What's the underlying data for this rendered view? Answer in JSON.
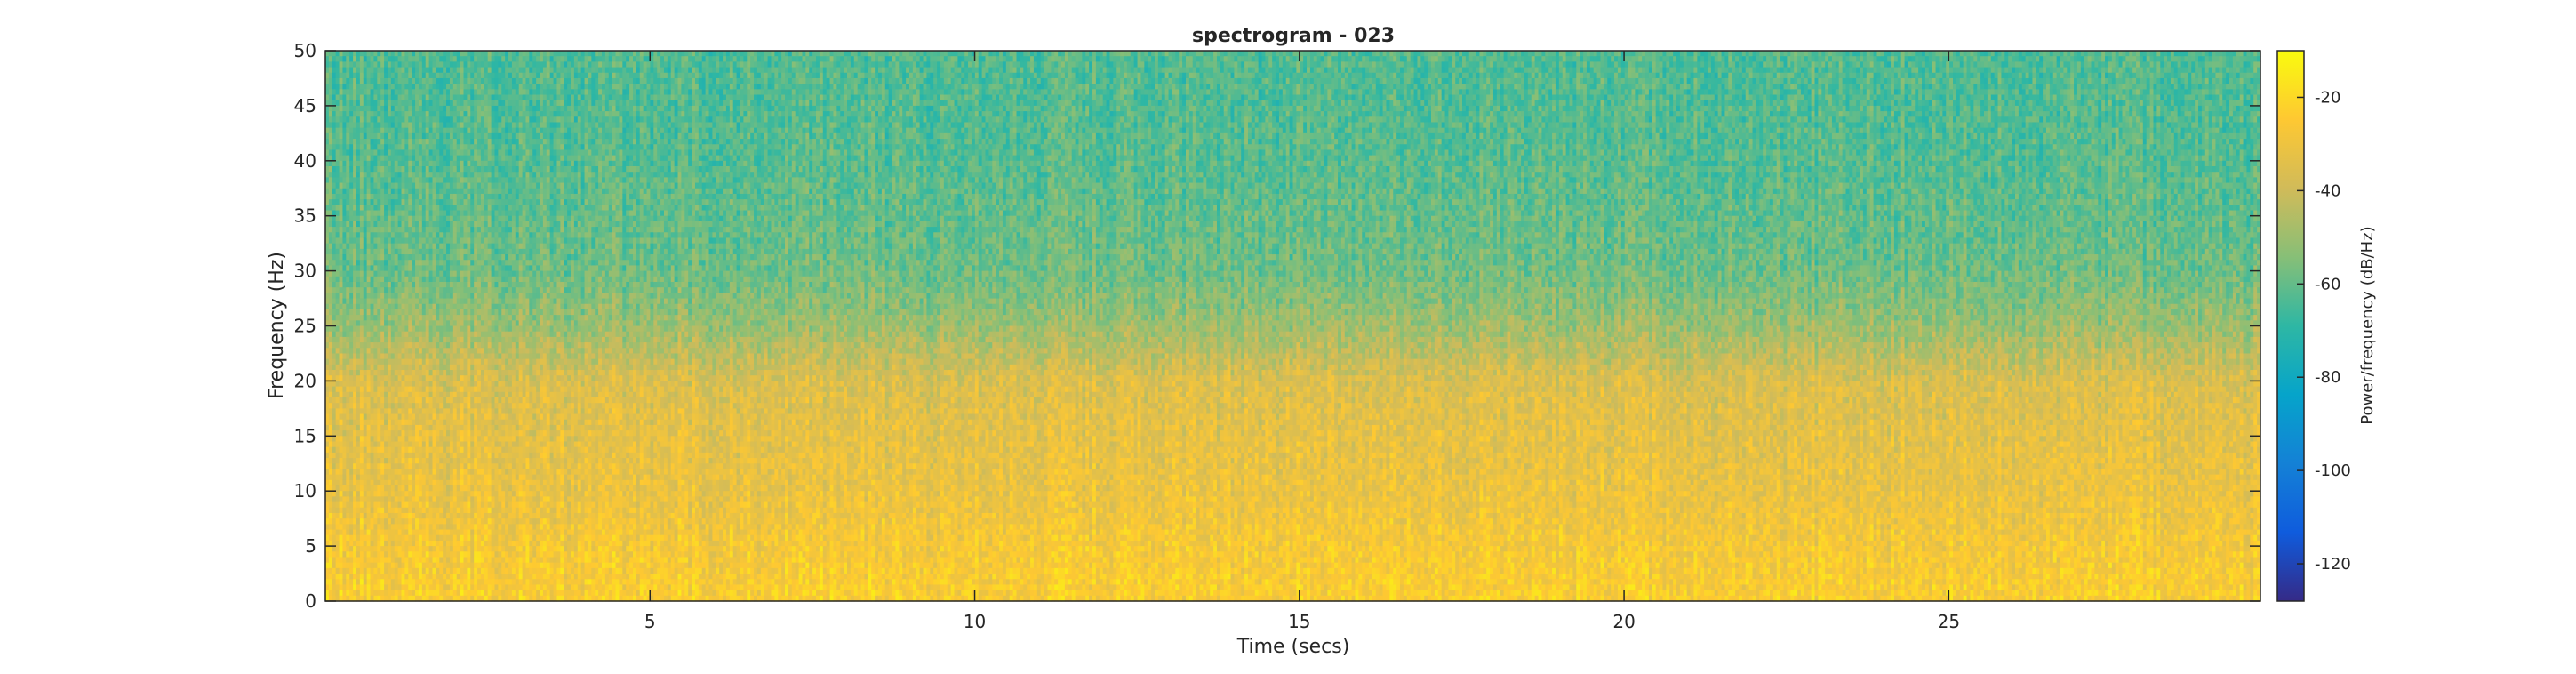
{
  "chart_data": {
    "type": "heatmap",
    "title": "spectrogram - 023",
    "xlabel": "Time (secs)",
    "ylabel": "Frequency (Hz)",
    "xlim": [
      0,
      29.8
    ],
    "ylim": [
      0,
      50
    ],
    "x_ticks": [
      5,
      10,
      15,
      20,
      25
    ],
    "y_ticks": [
      0,
      5,
      10,
      15,
      20,
      25,
      30,
      35,
      40,
      45,
      50
    ],
    "colorbar": {
      "label": "Power/frequency (dB/Hz)",
      "range": [
        -128,
        -10
      ],
      "ticks": [
        -120,
        -100,
        -80,
        -60,
        -40,
        -20
      ],
      "colormap": "parula"
    },
    "z_profile_by_frequency": {
      "frequencies_hz": [
        0,
        5,
        10,
        15,
        20,
        22,
        25,
        30,
        35,
        40,
        45,
        50
      ],
      "mean_power_db": [
        -24,
        -27,
        -31,
        -33,
        -36,
        -42,
        -50,
        -58,
        -60,
        -62,
        -63,
        -63
      ]
    },
    "grid": false
  }
}
